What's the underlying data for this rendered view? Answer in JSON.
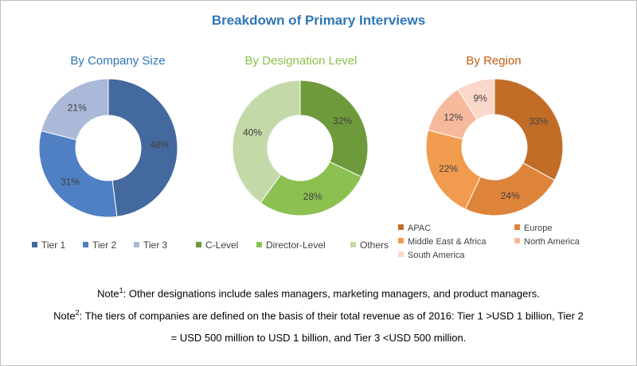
{
  "title": "Breakdown of Primary Interviews",
  "chart_data": [
    {
      "type": "pie",
      "title": "By Company Size",
      "categories": [
        "Tier 1",
        "Tier 2",
        "Tier 3"
      ],
      "values": [
        48,
        31,
        21
      ],
      "labels": [
        "48%",
        "31%",
        "21%"
      ],
      "colors": [
        "#44699e",
        "#4f80c3",
        "#aab9d8"
      ]
    },
    {
      "type": "pie",
      "title": "By Designation Level",
      "categories": [
        "C-Level",
        "Director-Level",
        "Others"
      ],
      "values": [
        32,
        28,
        40
      ],
      "labels": [
        "32%",
        "28%",
        "40%"
      ],
      "colors": [
        "#6e9a3c",
        "#8cc152",
        "#c4d9a8"
      ]
    },
    {
      "type": "pie",
      "title": "By Region",
      "categories": [
        "APAC",
        "Europe",
        "Middle East & Africa",
        "North America",
        "South America"
      ],
      "values": [
        33,
        24,
        22,
        12,
        9
      ],
      "labels": [
        "33%",
        "24%",
        "22%",
        "12%",
        "9%"
      ],
      "colors": [
        "#c16d28",
        "#de833a",
        "#f19b4e",
        "#f6b99c",
        "#fbd8ca"
      ]
    }
  ],
  "notes": {
    "note1_prefix": "Note",
    "note1_sup": "1",
    "note1_text": ": Other designations include sales managers, marketing managers, and product managers.",
    "note2_prefix": "Note",
    "note2_sup": "2",
    "note2_text_line1": ": The tiers of companies are defined on the basis of their total revenue as of 2016: Tier 1 >USD 1 billion, Tier 2",
    "note2_text_line2": "= USD 500 million to USD 1 billion, and Tier 3 <USD 500 million."
  }
}
